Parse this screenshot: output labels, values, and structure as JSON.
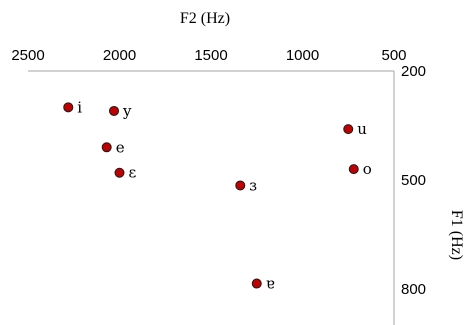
{
  "chart_data": {
    "type": "scatter",
    "xlabel": "F2 (Hz)",
    "ylabel": "F1 (Hz)",
    "x_reversed": true,
    "y_reversed": true,
    "xlim": [
      2500,
      500
    ],
    "ylim": [
      200,
      900
    ],
    "x_ticks": [
      {
        "value": 2500,
        "label": "2500"
      },
      {
        "value": 2000,
        "label": "2000"
      },
      {
        "value": 1500,
        "label": "1500"
      },
      {
        "value": 1000,
        "label": "1000"
      },
      {
        "value": 500,
        "label": "500"
      }
    ],
    "y_ticks": [
      {
        "value": 200,
        "label": "200"
      },
      {
        "value": 500,
        "label": "500"
      },
      {
        "value": 800,
        "label": "800"
      }
    ],
    "marker_color": "#c00000",
    "grid": false,
    "points": [
      {
        "label": "i",
        "x": 2280,
        "y": 300
      },
      {
        "label": "y",
        "x": 2030,
        "y": 310
      },
      {
        "label": "e",
        "x": 2070,
        "y": 410
      },
      {
        "label": "ɛ",
        "x": 2000,
        "y": 480
      },
      {
        "label": "ɜ",
        "x": 1340,
        "y": 515
      },
      {
        "label": "u",
        "x": 750,
        "y": 360
      },
      {
        "label": "o",
        "x": 720,
        "y": 470
      },
      {
        "label": "ɐ",
        "x": 1250,
        "y": 785
      }
    ]
  }
}
